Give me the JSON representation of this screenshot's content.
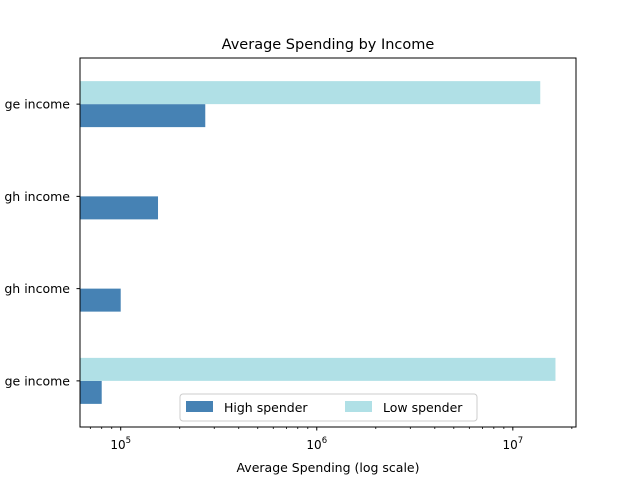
{
  "chart_data": {
    "type": "bar",
    "orientation": "horizontal",
    "title": "Average Spending by Income",
    "xlabel": "Average Spending (log scale)",
    "ylabel": "",
    "x_scale": "log",
    "xlim": [
      62000,
      21000000
    ],
    "x_major_ticks": [
      {
        "value": 100000,
        "base": "10",
        "exp": "5"
      },
      {
        "value": 1000000,
        "base": "10",
        "exp": "6"
      },
      {
        "value": 10000000,
        "base": "10",
        "exp": "7"
      }
    ],
    "categories": [
      "ge income",
      "gh income",
      "gh income",
      "ge income"
    ],
    "series": [
      {
        "name": "High spender",
        "color": "#4682b4",
        "values": [
          80000,
          100000,
          155000,
          270000
        ]
      },
      {
        "name": "Low spender",
        "color": "#b0e0e6",
        "values": [
          16500000,
          null,
          null,
          13800000
        ]
      }
    ],
    "legend": {
      "placement": "lower-center",
      "columns": 2
    },
    "grid": false
  }
}
